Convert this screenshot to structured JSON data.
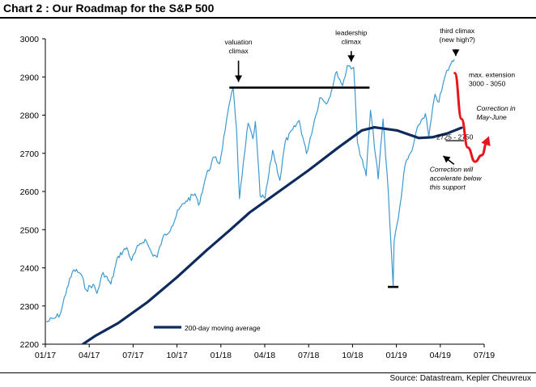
{
  "page": {
    "title": "Chart 2 : Our Roadmap for the S&P 500",
    "source": "Source: Datastream, Kepler Cheuvreux"
  },
  "chart_data": {
    "type": "line",
    "title": "Chart 2 : Our Roadmap for the S&P 500",
    "xlabel": "",
    "ylabel": "",
    "ylim": [
      2200,
      3000
    ],
    "xlim": [
      "2017-01-01",
      "2019-07-01"
    ],
    "y_ticks": [
      "2200",
      "2300",
      "2400",
      "2500",
      "2600",
      "2700",
      "2800",
      "2900",
      "3000"
    ],
    "x_ticks": [
      "01/17",
      "04/17",
      "07/17",
      "10/17",
      "01/18",
      "04/18",
      "07/18",
      "10/18",
      "01/19",
      "04/19",
      "07/19"
    ],
    "grid": false,
    "legend_position": "bottom-left",
    "colors": {
      "price": "#3d9ad1",
      "ma": "#0f2a5c",
      "roadmap": "#e8141b",
      "annotation": "#000000"
    },
    "series": [
      {
        "name": "",
        "color": "#3d9ad1",
        "points": [
          [
            "2017-01-03",
            2258
          ],
          [
            "2017-01-20",
            2268
          ],
          [
            "2017-02-01",
            2279
          ],
          [
            "2017-02-15",
            2347
          ],
          [
            "2017-03-01",
            2395
          ],
          [
            "2017-03-15",
            2385
          ],
          [
            "2017-03-27",
            2342
          ],
          [
            "2017-04-10",
            2357
          ],
          [
            "2017-04-18",
            2333
          ],
          [
            "2017-05-01",
            2388
          ],
          [
            "2017-05-17",
            2357
          ],
          [
            "2017-06-01",
            2430
          ],
          [
            "2017-06-19",
            2453
          ],
          [
            "2017-06-29",
            2419
          ],
          [
            "2017-07-14",
            2459
          ],
          [
            "2017-07-27",
            2475
          ],
          [
            "2017-08-10",
            2438
          ],
          [
            "2017-08-21",
            2428
          ],
          [
            "2017-09-01",
            2476
          ],
          [
            "2017-09-20",
            2508
          ],
          [
            "2017-10-05",
            2552
          ],
          [
            "2017-10-20",
            2575
          ],
          [
            "2017-11-08",
            2594
          ],
          [
            "2017-11-15",
            2564
          ],
          [
            "2017-12-01",
            2642
          ],
          [
            "2017-12-18",
            2690
          ],
          [
            "2017-12-29",
            2673
          ],
          [
            "2018-01-12",
            2786
          ],
          [
            "2018-01-26",
            2872
          ],
          [
            "2018-02-02",
            2762
          ],
          [
            "2018-02-08",
            2581
          ],
          [
            "2018-02-26",
            2779
          ],
          [
            "2018-03-08",
            2738
          ],
          [
            "2018-03-13",
            2783
          ],
          [
            "2018-03-23",
            2588
          ],
          [
            "2018-04-02",
            2582
          ],
          [
            "2018-04-18",
            2708
          ],
          [
            "2018-05-03",
            2629
          ],
          [
            "2018-05-14",
            2730
          ],
          [
            "2018-06-12",
            2786
          ],
          [
            "2018-06-27",
            2699
          ],
          [
            "2018-07-16",
            2798
          ],
          [
            "2018-07-25",
            2846
          ],
          [
            "2018-08-10",
            2833
          ],
          [
            "2018-08-29",
            2914
          ],
          [
            "2018-09-10",
            2877
          ],
          [
            "2018-09-20",
            2930
          ],
          [
            "2018-10-03",
            2925
          ],
          [
            "2018-10-11",
            2728
          ],
          [
            "2018-10-29",
            2641
          ],
          [
            "2018-11-07",
            2813
          ],
          [
            "2018-11-23",
            2633
          ],
          [
            "2018-12-03",
            2790
          ],
          [
            "2018-12-14",
            2599
          ],
          [
            "2018-12-24",
            2351
          ],
          [
            "2018-12-26",
            2468
          ],
          [
            "2019-01-04",
            2532
          ],
          [
            "2019-01-18",
            2670
          ],
          [
            "2019-02-01",
            2707
          ],
          [
            "2019-02-15",
            2775
          ],
          [
            "2019-03-01",
            2804
          ],
          [
            "2019-03-08",
            2743
          ],
          [
            "2019-03-21",
            2855
          ],
          [
            "2019-03-29",
            2834
          ],
          [
            "2019-04-12",
            2907
          ],
          [
            "2019-04-23",
            2934
          ],
          [
            "2019-04-30",
            2946
          ]
        ]
      },
      {
        "name": "200-day moving average",
        "color": "#0f2a5c",
        "points": [
          [
            "2017-03-20",
            2200
          ],
          [
            "2017-04-15",
            2222
          ],
          [
            "2017-06-01",
            2255
          ],
          [
            "2017-08-01",
            2310
          ],
          [
            "2017-10-01",
            2375
          ],
          [
            "2017-12-01",
            2445
          ],
          [
            "2018-01-20",
            2500
          ],
          [
            "2018-03-01",
            2545
          ],
          [
            "2018-05-01",
            2600
          ],
          [
            "2018-07-01",
            2655
          ],
          [
            "2018-09-01",
            2715
          ],
          [
            "2018-10-20",
            2760
          ],
          [
            "2018-11-15",
            2768
          ],
          [
            "2019-01-01",
            2760
          ],
          [
            "2019-02-15",
            2740
          ],
          [
            "2019-03-15",
            2742
          ],
          [
            "2019-04-15",
            2752
          ],
          [
            "2019-05-15",
            2767
          ]
        ]
      }
    ],
    "roadmap": {
      "color": "#e8141b",
      "points": [
        [
          "2019-05-01",
          2910
        ],
        [
          "2019-05-15",
          2790
        ],
        [
          "2019-05-28",
          2715
        ],
        [
          "2019-06-12",
          2678
        ],
        [
          "2019-06-26",
          2695
        ],
        [
          "2019-07-08",
          2735
        ]
      ]
    },
    "reference_lines": [
      {
        "y": 2872,
        "from": "2018-01-18",
        "to": "2018-11-05",
        "color": "#000000"
      },
      {
        "y": 2350,
        "from": "2018-12-13",
        "to": "2019-01-04",
        "color": "#000000"
      },
      {
        "y": 2733,
        "from": "2019-04-12",
        "to": "2019-05-20",
        "color": "#000000"
      }
    ],
    "annotations": [
      {
        "lines": [
          "valuation",
          "climax"
        ],
        "at": [
          "2018-02-06",
          2985
        ],
        "arrow_to": [
          "2018-02-06",
          2887
        ],
        "italic": false
      },
      {
        "lines": [
          "leadership",
          "climax"
        ],
        "at": [
          "2018-09-28",
          3010
        ],
        "arrow_to": [
          "2018-09-28",
          2940
        ],
        "italic": false
      },
      {
        "lines": [
          "third climax",
          "(new high?)"
        ],
        "at": [
          "2019-05-06",
          3015
        ],
        "arrow_to": [
          "2019-05-03",
          2955
        ],
        "italic": false
      },
      {
        "lines": [
          "max. extension",
          "3000 - 3050"
        ],
        "at": [
          "2019-05-30",
          2900
        ],
        "italic": false
      },
      {
        "lines": [
          "Correction in",
          "May-June"
        ],
        "at": [
          "2019-06-15",
          2812
        ],
        "italic": true
      },
      {
        "lines": [
          "2725 - 2750"
        ],
        "at": [
          "2019-05-01",
          2737
        ],
        "italic": false
      },
      {
        "lines": [
          "Correction will",
          "accelerate below",
          "this support"
        ],
        "at": [
          "2019-03-10",
          2652
        ],
        "arrow_to": [
          "2019-04-07",
          2693
        ],
        "italic": true
      }
    ]
  }
}
